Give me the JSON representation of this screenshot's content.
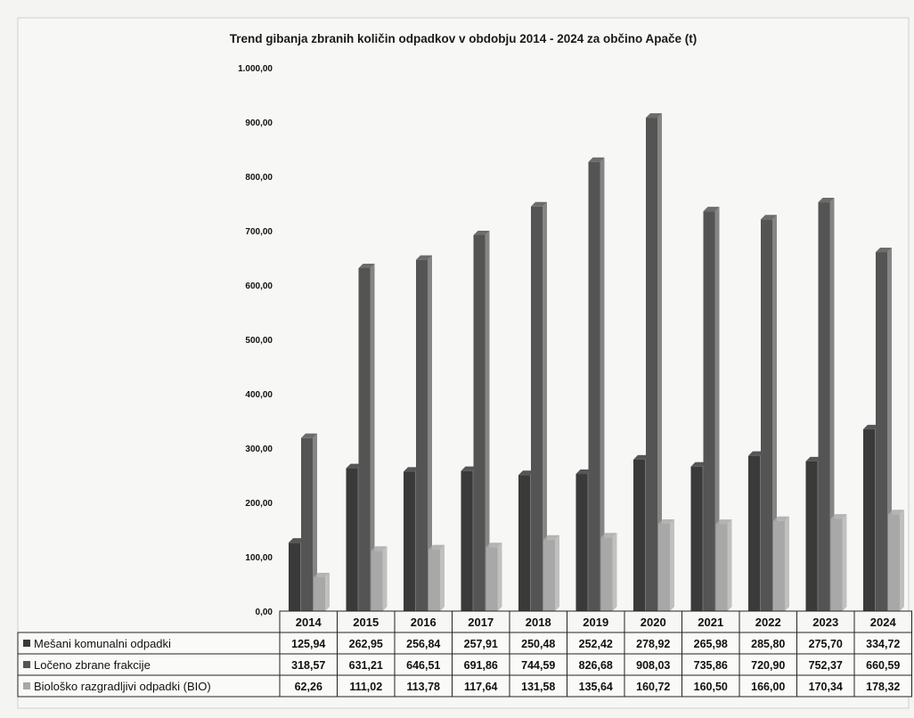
{
  "chart_data": {
    "type": "bar",
    "title": "Trend gibanja zbranih količin odpadkov v obdobju 2014 - 2024 za občino Apače (t)",
    "categories": [
      "2014",
      "2015",
      "2016",
      "2017",
      "2018",
      "2019",
      "2020",
      "2021",
      "2022",
      "2023",
      "2024"
    ],
    "ylim": [
      0,
      1000
    ],
    "yticks": [
      "0,00",
      "100,00",
      "200,00",
      "300,00",
      "400,00",
      "500,00",
      "600,00",
      "700,00",
      "800,00",
      "900,00",
      "1.000,00"
    ],
    "grid": false,
    "legend": "data-table-below",
    "series": [
      {
        "name": "Mešani komunalni odpadki",
        "color": "#3a3a3a",
        "values": [
          125.94,
          262.95,
          256.84,
          257.91,
          250.48,
          252.42,
          278.92,
          265.98,
          285.8,
          275.7,
          334.72
        ],
        "labels": [
          "125,94",
          "262,95",
          "256,84",
          "257,91",
          "250,48",
          "252,42",
          "278,92",
          "265,98",
          "285,80",
          "275,70",
          "334,72"
        ]
      },
      {
        "name": "Ločeno zbrane frakcije",
        "color": "#545454",
        "values": [
          318.57,
          631.21,
          646.51,
          691.86,
          744.59,
          826.68,
          908.03,
          735.86,
          720.9,
          752.37,
          660.59
        ],
        "labels": [
          "318,57",
          "631,21",
          "646,51",
          "691,86",
          "744,59",
          "826,68",
          "908,03",
          "735,86",
          "720,90",
          "752,37",
          "660,59"
        ]
      },
      {
        "name": "Biološko razgradljivi odpadki (BIO)",
        "color": "#a8a8a8",
        "values": [
          62.26,
          111.02,
          113.78,
          117.64,
          131.58,
          135.64,
          160.72,
          160.5,
          166.0,
          170.34,
          178.32
        ],
        "labels": [
          "62,26",
          "111,02",
          "113,78",
          "117,64",
          "131,58",
          "135,64",
          "160,72",
          "160,50",
          "166,00",
          "170,34",
          "178,32"
        ]
      }
    ]
  }
}
